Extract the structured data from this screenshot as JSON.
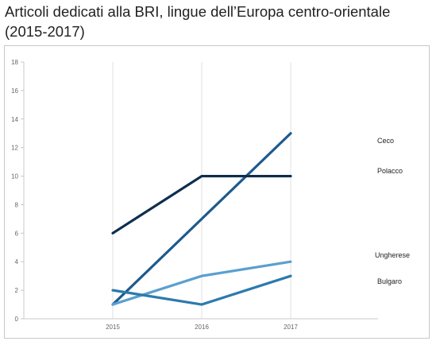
{
  "title": "Articoli dedicati alla BRI, lingue dell’Europa centro-orientale (2015-2017)",
  "chart_data": {
    "type": "line",
    "title": "Articoli dedicati alla BRI, lingue dell’Europa centro-orientale (2015-2017)",
    "xlabel": "",
    "ylabel": "",
    "x": [
      "2015",
      "2016",
      "2017"
    ],
    "ylim": [
      0,
      18
    ],
    "yticks": [
      0,
      2,
      4,
      6,
      8,
      10,
      12,
      14,
      16,
      18
    ],
    "grid": "vertical-major",
    "legend": "right-end labels",
    "series": [
      {
        "name": "Ceco",
        "values": [
          1,
          7,
          13
        ],
        "color": "#1d5a8c"
      },
      {
        "name": "Polacco",
        "values": [
          6,
          10,
          10
        ],
        "color": "#0d2e4e"
      },
      {
        "name": "Ungherese",
        "values": [
          1,
          3,
          4
        ],
        "color": "#5b9fcf"
      },
      {
        "name": "Bulgaro",
        "values": [
          2,
          1,
          3
        ],
        "color": "#2c7aad"
      }
    ]
  }
}
